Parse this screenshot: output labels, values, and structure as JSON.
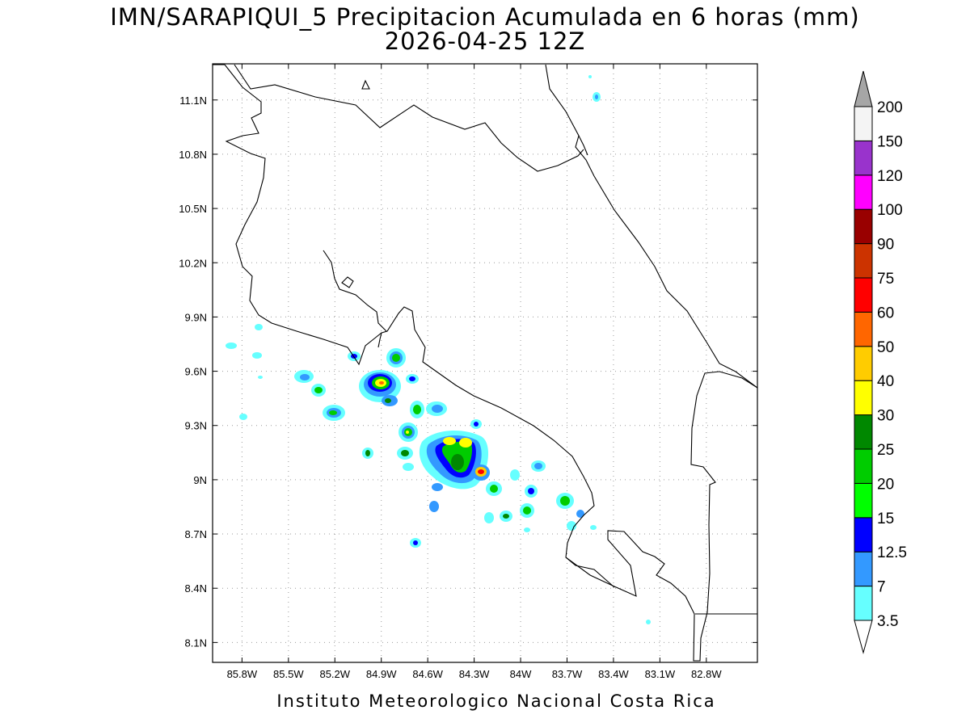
{
  "header": {
    "title": "IMN/SARAPIQUI_5 Precipitacion Acumulada en 6 horas (mm)",
    "subtitle": "2026-04-25 12Z"
  },
  "footer": {
    "credit": "Instituto Meteorologico Nacional Costa Rica"
  },
  "axes": {
    "lon_labels": [
      "85.8W",
      "85.5W",
      "85.2W",
      "84.9W",
      "84.6W",
      "84.3W",
      "84W",
      "83.7W",
      "83.4W",
      "83.1W",
      "82.8W"
    ],
    "lat_labels": [
      "11.1N",
      "10.8N",
      "10.5N",
      "10.2N",
      "9.9N",
      "9.6N",
      "9.3N",
      "9N",
      "8.7N",
      "8.4N",
      "8.1N"
    ],
    "lon_values": [
      -85.8,
      -85.5,
      -85.2,
      -84.9,
      -84.6,
      -84.3,
      -84.0,
      -83.7,
      -83.4,
      -83.1,
      -82.8
    ],
    "lat_values": [
      11.1,
      10.8,
      10.5,
      10.2,
      9.9,
      9.6,
      9.3,
      9.0,
      8.7,
      8.4,
      8.1
    ],
    "lon_range": [
      -85.99,
      -82.47
    ],
    "lat_range": [
      7.99,
      11.3
    ],
    "grid": true,
    "grid_style": "dotted"
  },
  "legend": {
    "placement": "right",
    "labels": [
      "3.5",
      "7",
      "12.5",
      "15",
      "20",
      "25",
      "30",
      "40",
      "50",
      "60",
      "75",
      "90",
      "100",
      "120",
      "150",
      "200"
    ],
    "colors": [
      "#66ffff",
      "#3399ff",
      "#0000ff",
      "#00ff00",
      "#00cc00",
      "#008800",
      "#ffff00",
      "#ffcc00",
      "#ff6600",
      "#ff0000",
      "#cc3300",
      "#990000",
      "#ff00ff",
      "#9933cc",
      "#f4f4f4",
      "#a6a6a6"
    ]
  },
  "map": {
    "coastline_color": "#000000"
  }
}
